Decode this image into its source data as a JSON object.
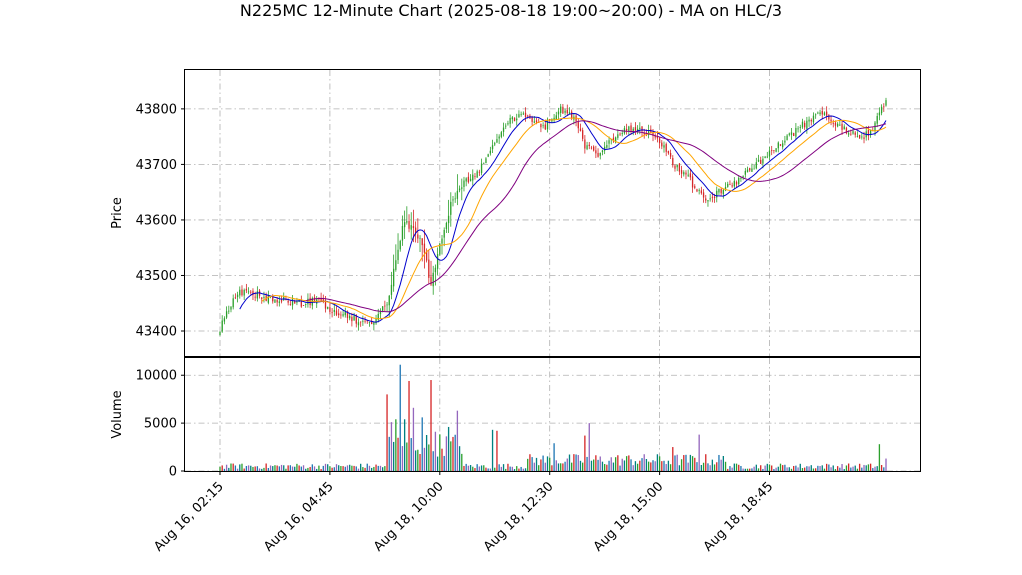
{
  "chart_data": {
    "type": "candlestick",
    "title": "N225MC 12-Minute Chart (2025-08-18 19:00~20:00) - MA on HLC/3",
    "price_panel": {
      "ylabel": "Price",
      "yticks": [
        43400,
        43500,
        43600,
        43700,
        43800
      ],
      "ylim": [
        43355,
        43870
      ],
      "candle_colors": {
        "up": "#2ca02c",
        "down": "#d62728"
      },
      "moving_averages": [
        {
          "color": "#0000cc"
        },
        {
          "color": "#ffa500"
        },
        {
          "color": "#800080"
        }
      ],
      "anchor_closes": [
        [
          0,
          43405
        ],
        [
          4,
          43440
        ],
        [
          8,
          43470
        ],
        [
          14,
          43470
        ],
        [
          20,
          43460
        ],
        [
          28,
          43455
        ],
        [
          36,
          43450
        ],
        [
          44,
          43455
        ],
        [
          50,
          43440
        ],
        [
          56,
          43430
        ],
        [
          62,
          43420
        ],
        [
          68,
          43410
        ],
        [
          72,
          43430
        ],
        [
          76,
          43450
        ],
        [
          80,
          43530
        ],
        [
          84,
          43600
        ],
        [
          88,
          43580
        ],
        [
          92,
          43560
        ],
        [
          96,
          43480
        ],
        [
          100,
          43560
        ],
        [
          106,
          43640
        ],
        [
          112,
          43670
        ],
        [
          118,
          43690
        ],
        [
          124,
          43730
        ],
        [
          130,
          43770
        ],
        [
          136,
          43790
        ],
        [
          142,
          43780
        ],
        [
          148,
          43770
        ],
        [
          154,
          43800
        ],
        [
          158,
          43790
        ],
        [
          162,
          43780
        ],
        [
          166,
          43730
        ],
        [
          172,
          43720
        ],
        [
          178,
          43740
        ],
        [
          184,
          43760
        ],
        [
          190,
          43765
        ],
        [
          196,
          43755
        ],
        [
          202,
          43730
        ],
        [
          206,
          43700
        ],
        [
          212,
          43680
        ],
        [
          218,
          43650
        ],
        [
          222,
          43630
        ],
        [
          226,
          43650
        ],
        [
          232,
          43660
        ],
        [
          238,
          43680
        ],
        [
          244,
          43700
        ],
        [
          250,
          43720
        ],
        [
          256,
          43740
        ],
        [
          262,
          43760
        ],
        [
          268,
          43780
        ],
        [
          274,
          43790
        ],
        [
          280,
          43770
        ],
        [
          286,
          43760
        ],
        [
          292,
          43745
        ],
        [
          296,
          43760
        ],
        [
          300,
          43790
        ],
        [
          303,
          43815
        ]
      ]
    },
    "volume_panel": {
      "ylabel": "Volume",
      "yticks": [
        0,
        5000,
        10000
      ],
      "ylim": [
        0,
        11800
      ],
      "bar_colors": [
        "#2ca02c",
        "#d62728",
        "#1f77b4",
        "#9467bd",
        "#008080"
      ],
      "spikes": [
        [
          76,
          8000
        ],
        [
          78,
          5100
        ],
        [
          80,
          5400
        ],
        [
          82,
          11100
        ],
        [
          84,
          5400
        ],
        [
          86,
          9400
        ],
        [
          88,
          6600
        ],
        [
          92,
          5600
        ],
        [
          96,
          9500
        ],
        [
          98,
          4100
        ],
        [
          104,
          4600
        ],
        [
          108,
          6300
        ],
        [
          124,
          4300
        ],
        [
          126,
          4200
        ],
        [
          152,
          2900
        ],
        [
          166,
          3700
        ],
        [
          168,
          5000
        ],
        [
          206,
          2500
        ],
        [
          218,
          3800
        ],
        [
          300,
          2800
        ],
        [
          303,
          1300
        ]
      ]
    },
    "xaxis": {
      "tick_labels": [
        "Aug 16, 02:15",
        "Aug 16, 04:45",
        "Aug 18, 10:00",
        "Aug 18, 12:30",
        "Aug 18, 15:00",
        "Aug 18, 18:45"
      ],
      "tick_bars": [
        0,
        50,
        100,
        150,
        200,
        250
      ],
      "n_bars": 304
    },
    "legend": "none",
    "grid": true
  }
}
